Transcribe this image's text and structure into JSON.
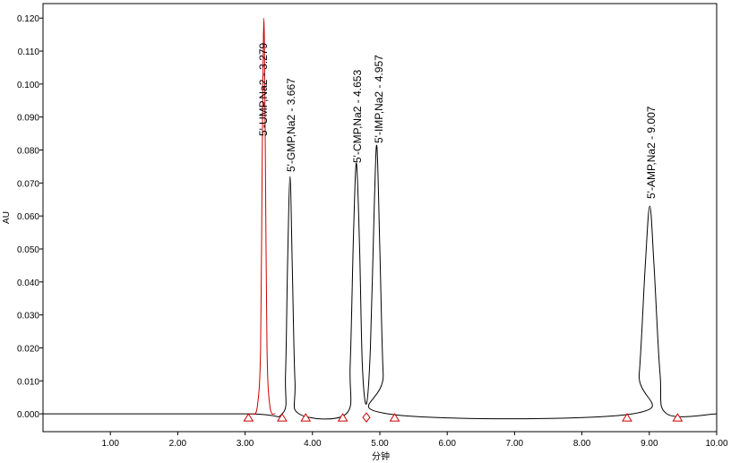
{
  "chart_data": {
    "type": "line",
    "ylabel": "AU",
    "xlabel": "分钟",
    "xlim": [
      0,
      10
    ],
    "ylim": [
      -0.0054,
      0.1244
    ],
    "xticks": [
      {
        "value": 1,
        "label": "1.00"
      },
      {
        "value": 2,
        "label": "2.00"
      },
      {
        "value": 3,
        "label": "3.00"
      },
      {
        "value": 4,
        "label": "4.00"
      },
      {
        "value": 5,
        "label": "5.00"
      },
      {
        "value": 6,
        "label": "6.00"
      },
      {
        "value": 7,
        "label": "7.00"
      },
      {
        "value": 8,
        "label": "8.00"
      },
      {
        "value": 9,
        "label": "9.00"
      },
      {
        "value": 10,
        "label": "10.00"
      }
    ],
    "yticks": [
      {
        "value": 0,
        "label": "0.000"
      },
      {
        "value": 0.01,
        "label": "0.010"
      },
      {
        "value": 0.02,
        "label": "0.020"
      },
      {
        "value": 0.03,
        "label": "0.030"
      },
      {
        "value": 0.04,
        "label": "0.040"
      },
      {
        "value": 0.05,
        "label": "0.050"
      },
      {
        "value": 0.06,
        "label": "0.060"
      },
      {
        "value": 0.07,
        "label": "0.070"
      },
      {
        "value": 0.08,
        "label": "0.080"
      },
      {
        "value": 0.09,
        "label": "0.090"
      },
      {
        "value": 0.1,
        "label": "0.100"
      },
      {
        "value": 0.11,
        "label": "0.110"
      },
      {
        "value": 0.12,
        "label": "0.120"
      }
    ],
    "series": [
      {
        "color": "#000000",
        "x": [
          0,
          3.0,
          3.55,
          3.6,
          3.63,
          3.667,
          3.7,
          3.74,
          3.8,
          4.5,
          4.56,
          4.61,
          4.653,
          4.7,
          4.74,
          4.8,
          4.86,
          4.92,
          4.957,
          5.0,
          5.05,
          5.12,
          8.75,
          8.85,
          8.94,
          9.007,
          9.07,
          9.16,
          9.26,
          10.0
        ],
        "values": [
          0,
          0,
          0,
          0.012,
          0.045,
          0.072,
          0.045,
          0.01,
          0,
          0,
          0.015,
          0.055,
          0.076,
          0.05,
          0.015,
          0.003,
          0.02,
          0.065,
          0.081,
          0.05,
          0.012,
          0,
          0,
          0.012,
          0.045,
          0.063,
          0.045,
          0.012,
          0,
          0
        ]
      },
      {
        "color": "#cc0000",
        "x": [
          3.1,
          3.18,
          3.23,
          3.255,
          3.279,
          3.3,
          3.325,
          3.37,
          3.45
        ],
        "values": [
          0,
          0.002,
          0.02,
          0.08,
          0.12,
          0.08,
          0.02,
          0.002,
          0
        ]
      }
    ],
    "baseline_marks": {
      "color": "#cc0000",
      "x": [
        3.05,
        3.55,
        3.9,
        4.45,
        4.8,
        5.22,
        8.67,
        9.42
      ],
      "values": [
        0,
        0,
        0,
        0,
        0,
        0,
        0,
        0
      ],
      "shapes": [
        "triangle",
        "triangle",
        "triangle",
        "triangle",
        "diamond",
        "triangle",
        "triangle",
        "triangle"
      ]
    },
    "annotations": [
      "5'-UMP,Na2 - 3.279",
      "5'-GMP,Na2 - 3.667",
      "5'-CMP,Na2 - 4.653",
      "5'-IMP,Na2 - 4.957",
      "5'-AMP,Na2 - 9.007"
    ]
  }
}
